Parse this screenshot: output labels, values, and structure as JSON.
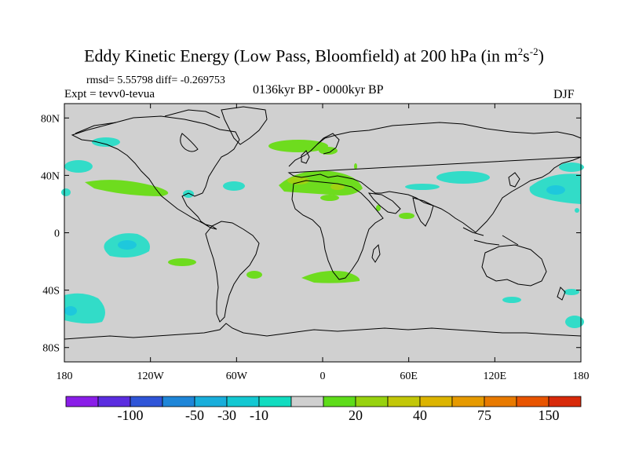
{
  "title": {
    "main": "Eddy Kinetic Energy (Low Pass, Bloomfield) at 200 hPa (in m",
    "sup1": "2",
    "mid": "s",
    "sup2": "-2",
    "end": ")"
  },
  "stats_text": "rmsd= 5.55798  diff= -0.269753",
  "expt_text": "Expt = tevv0-tevua",
  "period_text": "0136kyr BP - 0000kyr BP",
  "season_text": "DJF",
  "axes": {
    "lat_labels": [
      "80N",
      "40N",
      "0",
      "40S",
      "80S"
    ],
    "lon_labels": [
      "180",
      "120W",
      "60W",
      "0",
      "60E",
      "120E",
      "180"
    ]
  },
  "colorbar": {
    "colors": [
      "#8a1ee8",
      "#5b2de0",
      "#2f55d8",
      "#1f86d8",
      "#19aedb",
      "#14c8d2",
      "#12dcc0",
      "#cfcfcf",
      "#5edc1a",
      "#97d20f",
      "#c2c708",
      "#dcb400",
      "#e69a00",
      "#e87a00",
      "#e85400",
      "#d82a0a"
    ],
    "labels": [
      "-100",
      "-50",
      "-30",
      "-10",
      "20",
      "40",
      "75",
      "150"
    ]
  },
  "legend_colors": {
    "negative_light": "#32dcc8",
    "negative_mid": "#1ec8dc",
    "positive_light": "#6edc1e",
    "positive_mid": "#a0d212",
    "positive_strong": "#c8c800",
    "background": "#d0d0d0"
  }
}
